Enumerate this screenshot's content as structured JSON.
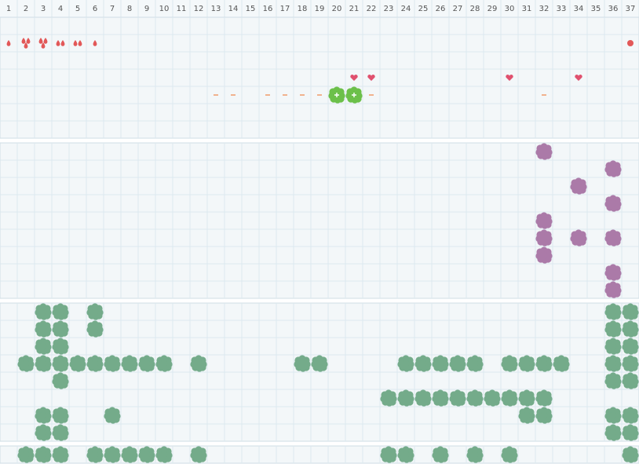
{
  "columns": [
    1,
    2,
    3,
    4,
    5,
    6,
    7,
    8,
    9,
    10,
    11,
    12,
    13,
    14,
    15,
    16,
    17,
    18,
    19,
    20,
    21,
    22,
    23,
    24,
    25,
    26,
    27,
    28,
    29,
    30,
    31,
    32,
    33,
    34,
    35,
    36,
    37
  ],
  "sections": [
    {
      "rows": [
        {},
        {
          "drop": [
            1,
            6
          ],
          "drops3": [
            2,
            3
          ],
          "drops2": [
            4,
            5
          ],
          "dot": [
            37
          ]
        },
        {},
        {
          "heart": [
            21,
            22,
            30,
            34
          ]
        },
        {
          "dash": [
            13,
            14,
            16,
            17,
            18,
            19,
            22,
            32
          ],
          "plus-bush": [
            20,
            21
          ]
        },
        {},
        {}
      ]
    },
    {
      "rows": [
        {
          "purple-bush": [
            32
          ]
        },
        {
          "purple-bush": [
            36
          ]
        },
        {
          "purple-bush": [
            34
          ]
        },
        {
          "purple-bush": [
            36
          ]
        },
        {
          "purple-bush": [
            32
          ]
        },
        {
          "purple-bush": [
            32,
            34,
            36
          ]
        },
        {
          "purple-bush": [
            32
          ]
        },
        {
          "purple-bush": [
            36
          ]
        },
        {
          "purple-bush": [
            36
          ]
        }
      ]
    },
    {
      "rows": [
        {
          "bush": [
            3,
            4,
            6,
            36,
            37
          ]
        },
        {
          "bush": [
            3,
            4,
            6,
            36,
            37
          ]
        },
        {
          "bush": [
            3,
            4,
            36,
            37
          ]
        },
        {
          "bush": [
            2,
            3,
            4,
            5,
            6,
            7,
            8,
            9,
            10,
            12,
            18,
            19,
            24,
            25,
            26,
            27,
            28,
            30,
            31,
            32,
            33,
            36,
            37
          ]
        },
        {
          "bush": [
            4,
            36,
            37
          ]
        },
        {
          "bush": [
            23,
            24,
            25,
            26,
            27,
            28,
            29,
            30,
            31,
            32
          ]
        },
        {
          "bush": [
            3,
            4,
            7,
            31,
            32,
            36,
            37
          ]
        },
        {
          "bush": [
            3,
            4,
            36,
            37
          ]
        }
      ]
    },
    {
      "rows": [
        {
          "bush": [
            2,
            3,
            4,
            6,
            7,
            8,
            9,
            10,
            12,
            23,
            24,
            26,
            28,
            30,
            37
          ]
        }
      ]
    }
  ]
}
